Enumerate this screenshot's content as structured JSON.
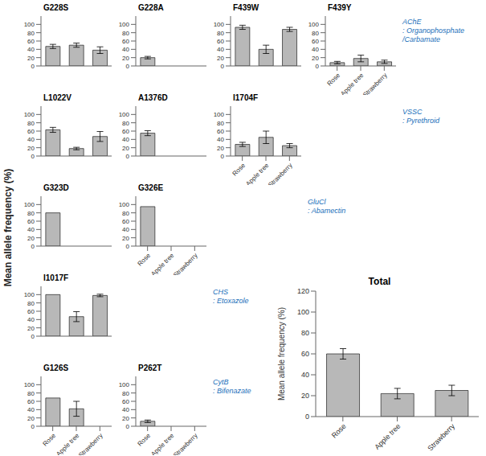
{
  "ylabel": "Mean allele frequency (%)",
  "annotations": [
    {
      "text": "AChE\n: Organophosphate\n/Carbamate",
      "color": "#1a6fba"
    },
    {
      "text": "VSSC\n: Pyrethroid",
      "color": "#1a6fba"
    },
    {
      "text": "GluCl\n: Abamectin",
      "color": "#1a6fba"
    },
    {
      "text": "CHS\n: Etoxazole",
      "color": "#1a6fba"
    },
    {
      "text": "CytB\n: Bifenazate",
      "color": "#1a6fba"
    }
  ],
  "chart_data": [
    {
      "type": "bar",
      "title": "G228S",
      "categories": [
        "Rose",
        "Apple tree",
        "Strawberry"
      ],
      "values": [
        47,
        50,
        38
      ],
      "errors": [
        5,
        5,
        8
      ],
      "color": "#b8b8b8",
      "ylim": [
        0,
        120
      ],
      "yticks": [
        0,
        20,
        40,
        60,
        80,
        100
      ],
      "tick_labels": "y"
    },
    {
      "type": "bar",
      "title": "G228A",
      "categories": [
        "Rose",
        "Apple tree",
        "Strawberry"
      ],
      "values": [
        20,
        0,
        0
      ],
      "errors": [
        3,
        0,
        0
      ],
      "color": "#b8b8b8",
      "ylim": [
        0,
        120
      ],
      "yticks": [
        0,
        20,
        40,
        60,
        80,
        100
      ],
      "tick_labels": "y"
    },
    {
      "type": "bar",
      "title": "F439W",
      "categories": [
        "Rose",
        "Apple tree",
        "Strawberry"
      ],
      "values": [
        93,
        40,
        88
      ],
      "errors": [
        5,
        10,
        5
      ],
      "color": "#b8b8b8",
      "ylim": [
        0,
        120
      ],
      "yticks": [
        0,
        20,
        40,
        60,
        80,
        100
      ],
      "tick_labels": "y"
    },
    {
      "type": "bar",
      "title": "F439Y",
      "categories": [
        "Rose",
        "Apple tree",
        "Strawberry"
      ],
      "values": [
        8,
        18,
        10
      ],
      "errors": [
        3,
        8,
        4
      ],
      "color": "#b8b8b8",
      "ylim": [
        0,
        120
      ],
      "yticks": [
        0,
        20,
        40,
        60,
        80,
        100
      ]
    },
    {
      "type": "bar",
      "title": "L1022V",
      "categories": [
        "Rose",
        "Apple tree",
        "Strawberry"
      ],
      "values": [
        63,
        18,
        47
      ],
      "errors": [
        6,
        3,
        12
      ],
      "color": "#b8b8b8",
      "ylim": [
        0,
        120
      ],
      "yticks": [
        0,
        20,
        40,
        60,
        80,
        100
      ],
      "tick_labels": "y"
    },
    {
      "type": "bar",
      "title": "A1376D",
      "categories": [
        "Rose",
        "Apple tree",
        "Strawberry"
      ],
      "values": [
        55,
        0,
        0
      ],
      "errors": [
        6,
        0,
        0
      ],
      "color": "#b8b8b8",
      "ylim": [
        0,
        120
      ],
      "yticks": [
        0,
        20,
        40,
        60,
        80,
        100
      ],
      "tick_labels": "y"
    },
    {
      "type": "bar",
      "title": "I1704F",
      "categories": [
        "Rose",
        "Apple tree",
        "Strawberry"
      ],
      "values": [
        28,
        45,
        25
      ],
      "errors": [
        5,
        15,
        5
      ],
      "color": "#b8b8b8",
      "ylim": [
        0,
        120
      ],
      "yticks": [
        0,
        20,
        40,
        60,
        80,
        100
      ]
    },
    {
      "type": "bar",
      "title": "G323D",
      "categories": [
        "Rose",
        "Apple tree",
        "Strawberry"
      ],
      "values": [
        80,
        0,
        0
      ],
      "errors": [
        0,
        0,
        0
      ],
      "color": "#b8b8b8",
      "ylim": [
        0,
        120
      ],
      "yticks": [
        0,
        20,
        40,
        60,
        80,
        100
      ],
      "tick_labels": "y"
    },
    {
      "type": "bar",
      "title": "G326E",
      "categories": [
        "Rose",
        "Apple tree",
        "Strawberry"
      ],
      "values": [
        95,
        0,
        0
      ],
      "errors": [
        0,
        0,
        0
      ],
      "color": "#b8b8b8",
      "ylim": [
        0,
        120
      ],
      "yticks": [
        0,
        20,
        40,
        60,
        80,
        100
      ]
    },
    {
      "type": "bar",
      "title": "I1017F",
      "categories": [
        "Rose",
        "Apple tree",
        "Strawberry"
      ],
      "values": [
        100,
        47,
        98
      ],
      "errors": [
        0,
        12,
        3
      ],
      "color": "#b8b8b8",
      "ylim": [
        0,
        120
      ],
      "yticks": [
        0,
        20,
        40,
        60,
        80,
        100
      ],
      "tick_labels": "y"
    },
    {
      "type": "bar",
      "title": "G126S",
      "categories": [
        "Rose",
        "Apple tree",
        "Strawberry"
      ],
      "values": [
        68,
        42,
        0
      ],
      "errors": [
        0,
        18,
        0
      ],
      "color": "#b8b8b8",
      "ylim": [
        0,
        120
      ],
      "yticks": [
        0,
        20,
        40,
        60,
        80,
        100
      ]
    },
    {
      "type": "bar",
      "title": "P262T",
      "categories": [
        "Rose",
        "Apple tree",
        "Strawberry"
      ],
      "values": [
        12,
        0,
        0
      ],
      "errors": [
        3,
        0,
        0
      ],
      "color": "#b8b8b8",
      "ylim": [
        0,
        120
      ],
      "yticks": [
        0,
        20,
        40,
        60,
        80,
        100
      ]
    },
    {
      "type": "bar",
      "title": "Total",
      "categories": [
        "Rose",
        "Apple tree",
        "Strawberry"
      ],
      "values": [
        60,
        22,
        25
      ],
      "errors": [
        5,
        5,
        5
      ],
      "color": "#b8b8b8",
      "ylim": [
        0,
        120
      ],
      "yticks": [
        0,
        20,
        40,
        60,
        80,
        100,
        120
      ],
      "ylabel": "Mean allele frequency (%)"
    }
  ]
}
